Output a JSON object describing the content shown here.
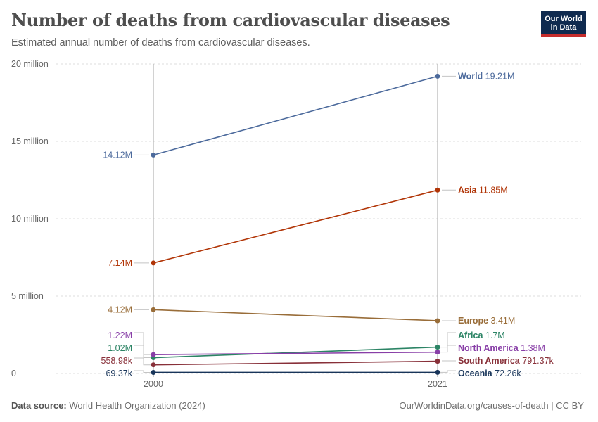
{
  "header": {
    "title": "Number of deaths from cardiovascular diseases",
    "subtitle": "Estimated annual number of deaths from cardiovascular diseases."
  },
  "logo": {
    "line1": "Our World",
    "line2": "in Data"
  },
  "footer": {
    "source_label": "Data source:",
    "source_text": "World Health Organization (2024)",
    "credit": "OurWorldinData.org/causes-of-death | CC BY"
  },
  "chart_data": {
    "type": "line",
    "x": [
      2000,
      2021
    ],
    "x_tick_labels": [
      "2000",
      "2021"
    ],
    "ylim": [
      0,
      20000000
    ],
    "y_ticks": [
      {
        "value": 0,
        "label": "0"
      },
      {
        "value": 5000000,
        "label": "5 million"
      },
      {
        "value": 10000000,
        "label": "10 million"
      },
      {
        "value": 15000000,
        "label": "15 million"
      },
      {
        "value": 20000000,
        "label": "20 million"
      }
    ],
    "grid": "horizontal dotted",
    "series": [
      {
        "name": "World",
        "color": "#4c6a9c",
        "values": [
          14120000,
          19210000
        ],
        "start_label": "14.12M",
        "end_value_label": "19.21M"
      },
      {
        "name": "Asia",
        "color": "#b13507",
        "values": [
          7140000,
          11850000
        ],
        "start_label": "7.14M",
        "end_value_label": "11.85M"
      },
      {
        "name": "Europe",
        "color": "#996d39",
        "values": [
          4120000,
          3410000
        ],
        "start_label": "4.12M",
        "end_value_label": "3.41M"
      },
      {
        "name": "Africa",
        "color": "#2c8465",
        "values": [
          1020000,
          1700000
        ],
        "start_label": "1.02M",
        "end_value_label": "1.7M"
      },
      {
        "name": "North America",
        "color": "#883ea7",
        "values": [
          1220000,
          1380000
        ],
        "start_label": "1.22M",
        "end_value_label": "1.38M"
      },
      {
        "name": "South America",
        "color": "#883039",
        "values": [
          558980,
          791370
        ],
        "start_label": "558.98k",
        "end_value_label": "791.37k"
      },
      {
        "name": "Oceania",
        "color": "#18355a",
        "values": [
          69370,
          72260
        ],
        "start_label": "69.37k",
        "end_value_label": "72.26k"
      }
    ]
  }
}
